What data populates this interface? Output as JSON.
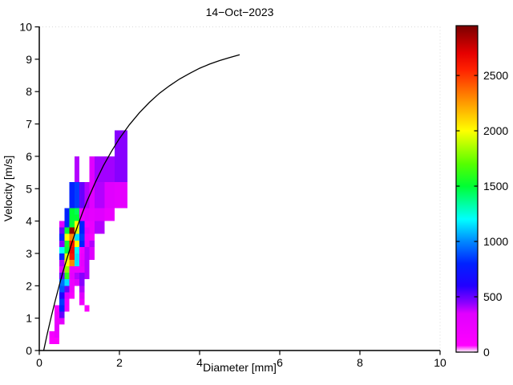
{
  "chart_data": {
    "type": "heatmap",
    "title": "14−Oct−2023",
    "xlabel": "Diameter [mm]",
    "ylabel": "Velocity [m/s]",
    "xlim": [
      0,
      10
    ],
    "ylim": [
      0,
      10
    ],
    "x_ticks": [
      0,
      2,
      4,
      6,
      8,
      10
    ],
    "y_ticks": [
      0,
      1,
      2,
      3,
      4,
      5,
      6,
      7,
      8,
      9,
      10
    ],
    "grid": false,
    "colorbar": {
      "position": "right",
      "ticks": [
        0,
        500,
        1000,
        1500,
        2000,
        2500
      ],
      "vmin": 0,
      "vmax": 2950,
      "colormap": [
        [
          0,
          "#ffffff"
        ],
        [
          60,
          "#ff00ff"
        ],
        [
          350,
          "#e000ff"
        ],
        [
          450,
          "#8800ff"
        ],
        [
          600,
          "#2200ff"
        ],
        [
          800,
          "#0022ff"
        ],
        [
          1000,
          "#0088ff"
        ],
        [
          1200,
          "#00ffff"
        ],
        [
          1500,
          "#00ff33"
        ],
        [
          1700,
          "#55ff00"
        ],
        [
          2000,
          "#ffff00"
        ],
        [
          2300,
          "#ff8800"
        ],
        [
          2550,
          "#ff2200"
        ],
        [
          2700,
          "#e60000"
        ],
        [
          2950,
          "#7a0000"
        ]
      ]
    },
    "cells_format": [
      "d_min_mm",
      "d_max_mm",
      "v_min_ms",
      "v_max_ms",
      "count"
    ],
    "cells": [
      [
        0.25,
        0.375,
        0.2,
        0.4,
        100
      ],
      [
        0.25,
        0.375,
        0.4,
        0.6,
        150
      ],
      [
        0.375,
        0.5,
        0.2,
        0.4,
        100
      ],
      [
        0.375,
        0.5,
        0.4,
        0.6,
        250
      ],
      [
        0.375,
        0.5,
        0.6,
        0.8,
        300
      ],
      [
        0.375,
        0.5,
        0.8,
        1.0,
        250
      ],
      [
        0.375,
        0.5,
        1.0,
        1.2,
        200
      ],
      [
        0.375,
        0.5,
        1.2,
        1.4,
        120
      ],
      [
        0.5,
        0.625,
        0.8,
        1.0,
        300
      ],
      [
        0.5,
        0.625,
        1.0,
        1.2,
        500
      ],
      [
        0.5,
        0.625,
        1.2,
        1.4,
        800
      ],
      [
        0.5,
        0.625,
        1.4,
        1.6,
        850
      ],
      [
        0.5,
        0.625,
        1.6,
        1.8,
        600
      ],
      [
        0.5,
        0.625,
        1.8,
        2.0,
        900
      ],
      [
        0.5,
        0.625,
        2.0,
        2.2,
        950
      ],
      [
        0.5,
        0.625,
        2.2,
        2.4,
        500
      ],
      [
        0.5,
        0.625,
        2.4,
        2.6,
        300
      ],
      [
        0.5,
        0.625,
        2.6,
        2.8,
        400
      ],
      [
        0.5,
        0.625,
        2.8,
        3.0,
        800
      ],
      [
        0.5,
        0.625,
        3.0,
        3.2,
        1200
      ],
      [
        0.5,
        0.625,
        3.2,
        3.4,
        450
      ],
      [
        0.5,
        0.625,
        3.4,
        3.6,
        800
      ],
      [
        0.5,
        0.625,
        3.6,
        3.8,
        500
      ],
      [
        0.5,
        0.625,
        3.8,
        4.0,
        350
      ],
      [
        0.625,
        0.75,
        1.2,
        1.4,
        150
      ],
      [
        0.625,
        0.75,
        1.4,
        1.6,
        200
      ],
      [
        0.625,
        0.75,
        1.6,
        1.8,
        350
      ],
      [
        0.625,
        0.75,
        1.8,
        2.0,
        500
      ],
      [
        0.625,
        0.75,
        2.0,
        2.2,
        1150
      ],
      [
        0.625,
        0.75,
        2.2,
        2.4,
        1600
      ],
      [
        0.625,
        0.75,
        2.4,
        2.6,
        1800
      ],
      [
        0.625,
        0.75,
        2.6,
        2.8,
        2000
      ],
      [
        0.625,
        0.75,
        2.8,
        3.0,
        1950
      ],
      [
        0.625,
        0.75,
        3.0,
        3.2,
        1500
      ],
      [
        0.625,
        0.75,
        3.2,
        3.4,
        1550
      ],
      [
        0.625,
        0.75,
        3.4,
        3.6,
        2000
      ],
      [
        0.625,
        0.75,
        3.6,
        3.8,
        1500
      ],
      [
        0.625,
        0.75,
        3.8,
        4.0,
        800
      ],
      [
        0.625,
        0.75,
        4.0,
        4.4,
        800
      ],
      [
        0.75,
        0.875,
        1.6,
        1.8,
        120
      ],
      [
        0.75,
        0.875,
        1.8,
        2.0,
        200
      ],
      [
        0.75,
        0.875,
        2.0,
        2.2,
        220
      ],
      [
        0.75,
        0.875,
        2.2,
        2.4,
        300
      ],
      [
        0.75,
        0.875,
        2.4,
        2.6,
        250
      ],
      [
        0.75,
        0.875,
        2.6,
        2.8,
        2300
      ],
      [
        0.75,
        0.875,
        2.8,
        3.0,
        2600
      ],
      [
        0.75,
        0.875,
        3.0,
        3.2,
        2650
      ],
      [
        0.75,
        0.875,
        3.2,
        3.4,
        2600
      ],
      [
        0.75,
        0.875,
        3.4,
        3.6,
        2300
      ],
      [
        0.75,
        0.875,
        3.6,
        3.8,
        2900
      ],
      [
        0.75,
        0.875,
        3.8,
        4.0,
        1500
      ],
      [
        0.75,
        0.875,
        4.0,
        4.4,
        1500
      ],
      [
        0.75,
        0.875,
        4.4,
        5.2,
        800
      ],
      [
        0.875,
        1.0,
        2.0,
        2.2,
        350
      ],
      [
        0.875,
        1.0,
        2.2,
        2.4,
        400
      ],
      [
        0.875,
        1.0,
        2.4,
        2.6,
        250
      ],
      [
        0.875,
        1.0,
        2.6,
        2.8,
        1150
      ],
      [
        0.875,
        1.0,
        2.8,
        3.0,
        1150
      ],
      [
        0.875,
        1.0,
        3.0,
        3.2,
        1200
      ],
      [
        0.875,
        1.0,
        3.2,
        3.4,
        2000
      ],
      [
        0.875,
        1.0,
        3.4,
        3.6,
        1150
      ],
      [
        0.875,
        1.0,
        3.6,
        3.8,
        1950
      ],
      [
        0.875,
        1.0,
        3.8,
        4.0,
        2000
      ],
      [
        0.875,
        1.0,
        4.0,
        4.2,
        1500
      ],
      [
        0.875,
        1.0,
        4.2,
        4.4,
        1450
      ],
      [
        0.875,
        1.0,
        4.4,
        5.2,
        850
      ],
      [
        0.875,
        1.0,
        5.2,
        6.0,
        400
      ],
      [
        1.0,
        1.125,
        1.4,
        1.6,
        200
      ],
      [
        1.0,
        1.125,
        1.6,
        1.8,
        350
      ],
      [
        1.0,
        1.125,
        1.8,
        2.0,
        400
      ],
      [
        1.0,
        1.125,
        2.0,
        2.2,
        450
      ],
      [
        1.0,
        1.125,
        2.2,
        2.4,
        450
      ],
      [
        1.0,
        1.125,
        2.4,
        2.6,
        250
      ],
      [
        1.0,
        1.125,
        2.6,
        2.8,
        300
      ],
      [
        1.0,
        1.125,
        2.8,
        3.0,
        250
      ],
      [
        1.0,
        1.125,
        3.0,
        3.2,
        200
      ],
      [
        1.0,
        1.125,
        3.2,
        3.4,
        800
      ],
      [
        1.0,
        1.125,
        3.4,
        3.6,
        850
      ],
      [
        1.0,
        1.125,
        3.6,
        3.8,
        800
      ],
      [
        1.0,
        1.125,
        3.8,
        4.0,
        800
      ],
      [
        1.0,
        1.125,
        4.0,
        4.2,
        250
      ],
      [
        1.0,
        1.125,
        4.2,
        4.4,
        200
      ],
      [
        1.0,
        1.125,
        4.4,
        5.2,
        500
      ],
      [
        1.125,
        1.25,
        1.2,
        1.4,
        100
      ],
      [
        1.125,
        1.25,
        2.2,
        2.4,
        400
      ],
      [
        1.125,
        1.25,
        2.4,
        2.6,
        400
      ],
      [
        1.125,
        1.25,
        2.6,
        2.8,
        400
      ],
      [
        1.125,
        1.25,
        2.8,
        3.0,
        400
      ],
      [
        1.125,
        1.25,
        3.0,
        3.2,
        400
      ],
      [
        1.125,
        1.25,
        3.2,
        3.4,
        250
      ],
      [
        1.125,
        1.25,
        3.4,
        3.6,
        200
      ],
      [
        1.125,
        1.25,
        3.6,
        3.8,
        350
      ],
      [
        1.125,
        1.25,
        3.8,
        4.0,
        200
      ],
      [
        1.125,
        1.25,
        4.0,
        4.4,
        350
      ],
      [
        1.125,
        1.25,
        4.4,
        5.2,
        400
      ],
      [
        1.25,
        1.375,
        2.8,
        3.0,
        350
      ],
      [
        1.25,
        1.375,
        3.0,
        3.2,
        350
      ],
      [
        1.25,
        1.375,
        3.2,
        3.4,
        400
      ],
      [
        1.25,
        1.375,
        3.4,
        3.6,
        150
      ],
      [
        1.25,
        1.375,
        3.6,
        3.8,
        250
      ],
      [
        1.25,
        1.375,
        3.8,
        4.0,
        250
      ],
      [
        1.25,
        1.375,
        4.0,
        4.4,
        300
      ],
      [
        1.25,
        1.375,
        4.4,
        5.2,
        350
      ],
      [
        1.25,
        1.375,
        5.2,
        6.0,
        350
      ],
      [
        1.375,
        1.625,
        3.6,
        3.8,
        400
      ],
      [
        1.375,
        1.625,
        3.8,
        4.0,
        400
      ],
      [
        1.375,
        1.625,
        4.0,
        4.4,
        350
      ],
      [
        1.375,
        1.625,
        4.4,
        5.2,
        400
      ],
      [
        1.375,
        1.625,
        5.2,
        6.0,
        420
      ],
      [
        1.625,
        1.875,
        4.0,
        4.4,
        250
      ],
      [
        1.625,
        1.875,
        4.4,
        5.2,
        350
      ],
      [
        1.625,
        1.875,
        5.2,
        6.0,
        420
      ],
      [
        1.875,
        2.2,
        4.4,
        5.2,
        300
      ],
      [
        1.875,
        2.2,
        5.2,
        6.0,
        450
      ],
      [
        1.875,
        2.2,
        6.0,
        6.8,
        450
      ]
    ],
    "curve": {
      "name": "terminal-velocity-curve",
      "color": "#000000",
      "points": [
        [
          0.11,
          0
        ],
        [
          0.2,
          0.52
        ],
        [
          0.3,
          1.05
        ],
        [
          0.4,
          1.55
        ],
        [
          0.5,
          2.02
        ],
        [
          0.6,
          2.47
        ],
        [
          0.7,
          2.88
        ],
        [
          0.8,
          3.28
        ],
        [
          0.9,
          3.65
        ],
        [
          1.0,
          4.0
        ],
        [
          1.1,
          4.33
        ],
        [
          1.2,
          4.64
        ],
        [
          1.4,
          5.2
        ],
        [
          1.6,
          5.71
        ],
        [
          1.8,
          6.15
        ],
        [
          2.0,
          6.55
        ],
        [
          2.25,
          6.98
        ],
        [
          2.5,
          7.35
        ],
        [
          2.75,
          7.67
        ],
        [
          3.0,
          7.95
        ],
        [
          3.25,
          8.18
        ],
        [
          3.5,
          8.39
        ],
        [
          3.75,
          8.56
        ],
        [
          4.0,
          8.72
        ],
        [
          4.25,
          8.85
        ],
        [
          4.5,
          8.96
        ],
        [
          4.75,
          9.05
        ],
        [
          5.0,
          9.14
        ]
      ]
    }
  }
}
